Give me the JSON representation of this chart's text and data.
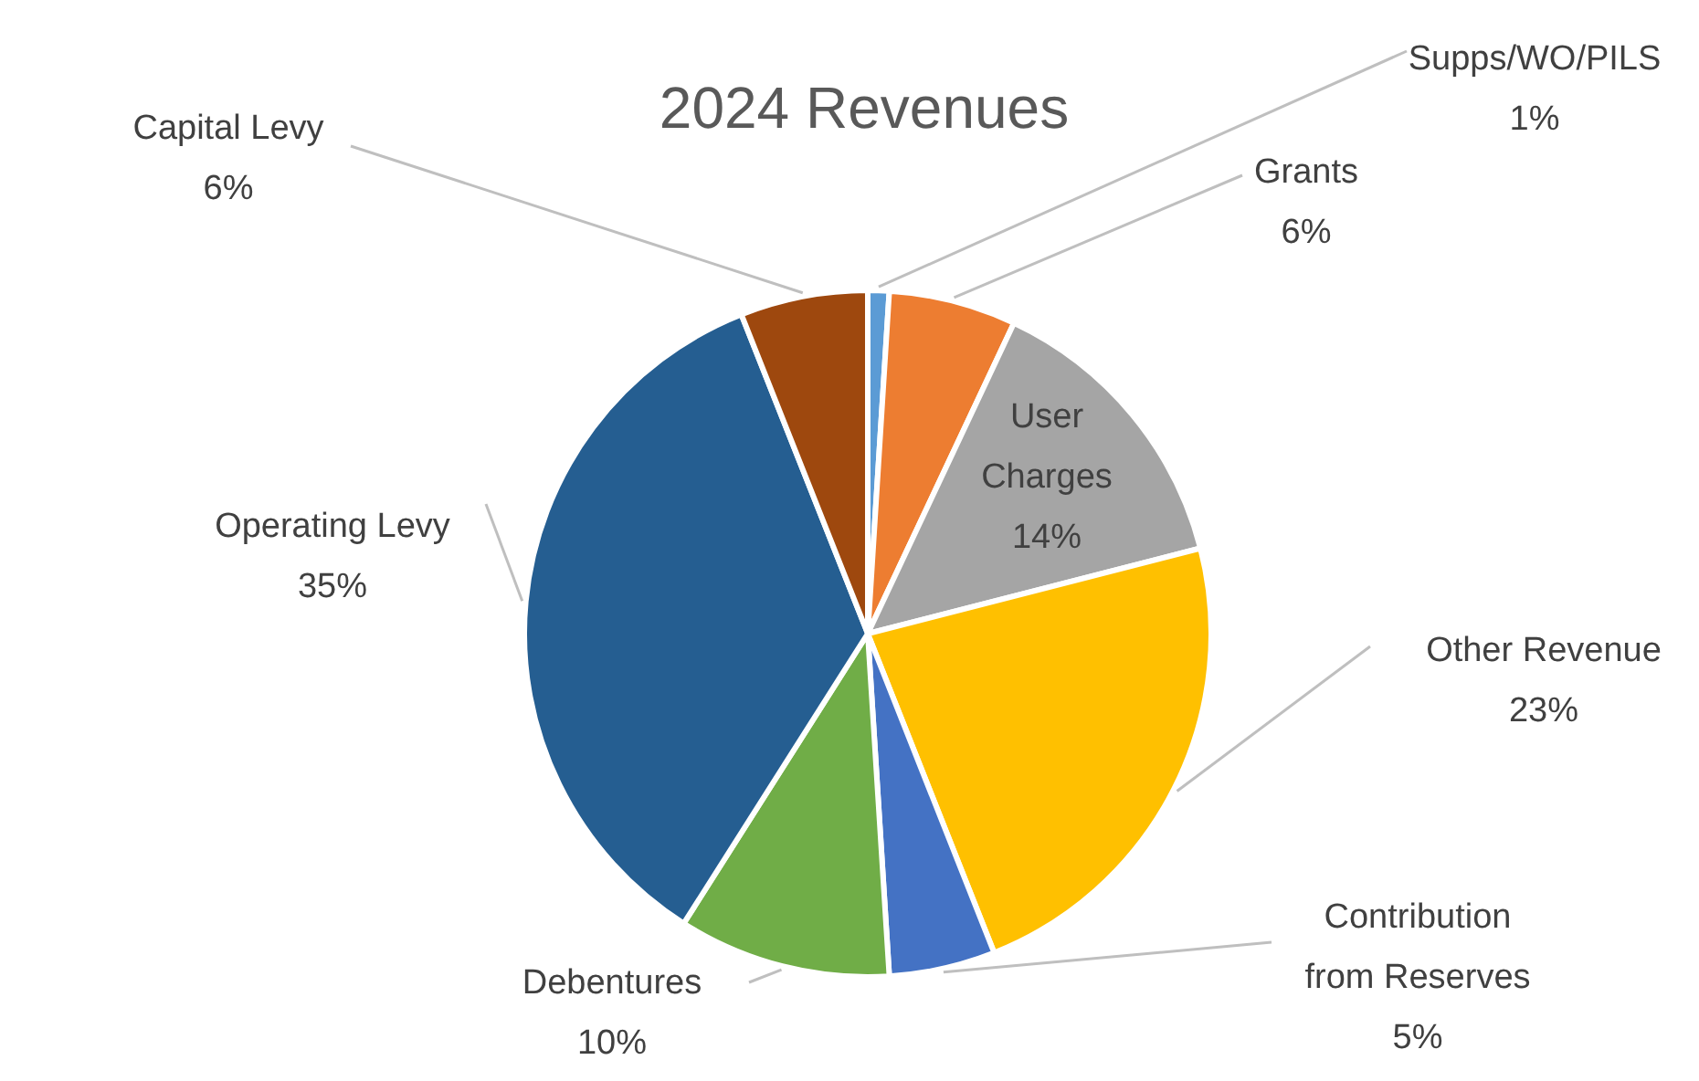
{
  "chart_data": {
    "type": "pie",
    "title": "2024 Revenues",
    "categories": [
      "Supps/WO/PILS",
      "Grants",
      "User Charges",
      "Other Revenue",
      "Contribution from Reserves",
      "Debentures",
      "Operating Levy",
      "Capital Levy"
    ],
    "values": [
      1,
      6,
      14,
      23,
      5,
      10,
      35,
      6
    ],
    "value_labels": [
      "1%",
      "6%",
      "14%",
      "23%",
      "5%",
      "10%",
      "35%",
      "6%"
    ],
    "colors": [
      "#5b9bd5",
      "#ed7d31",
      "#a5a5a5",
      "#ffc000",
      "#4472c4",
      "#70ad47",
      "#255e91",
      "#9e480e"
    ],
    "legend": false
  }
}
